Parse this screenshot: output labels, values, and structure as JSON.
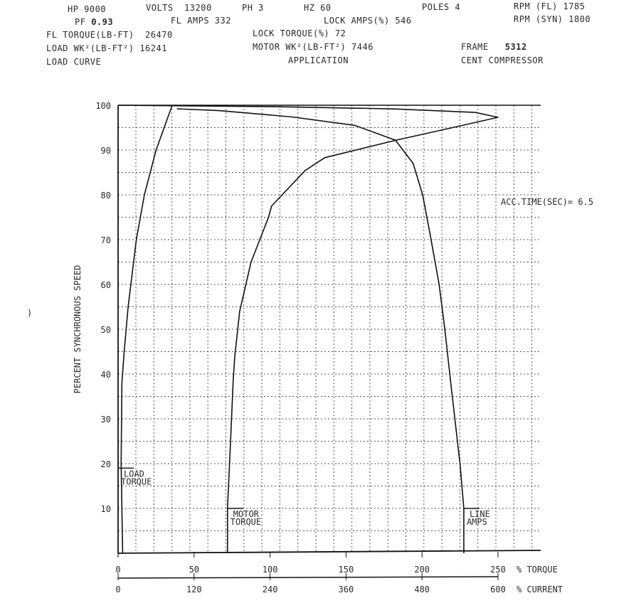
{
  "header": {
    "hp": "HP 9000",
    "volts": "VOLTS  13200",
    "phase": "PH 3",
    "hz": "HZ 60",
    "poles": "POLES 4",
    "rpm_fl": "RPM (FL) 1785",
    "pf_label": "PF",
    "pf_value": "0.93",
    "fl_amps": "FL AMPS 332",
    "lock_amps": "LOCK AMPS(%) 546",
    "rpm_syn": "RPM (SYN) 1800",
    "fl_torque": "FL TORQUE(LB-FT)  26470",
    "lock_torque": "LOCK TORQUE(%) 72",
    "load_wk2": "LOAD WK²(LB-FT²) 16241",
    "motor_wk2": "MOTOR WK²(LB-FT²) 7446",
    "frame_label": "FRAME",
    "frame_value": "5312",
    "load_curve": "LOAD CURVE",
    "application_label": "APPLICATION",
    "application_value": "CENT COMPRESSOR"
  },
  "stray_mark": ")",
  "chart_data": {
    "type": "line",
    "title": "",
    "ylabel": "PERCENT SYNCHRONOUS SPEED",
    "xlabel_torque": "% TORQUE",
    "xlabel_current": "% CURRENT",
    "ylim": [
      0,
      100
    ],
    "xlim_torque": [
      0,
      250
    ],
    "xlim_current": [
      0,
      600
    ],
    "yticks": [
      10,
      20,
      30,
      40,
      50,
      60,
      70,
      80,
      90,
      100
    ],
    "xticks_torque": [
      0,
      50,
      100,
      150,
      200,
      250
    ],
    "xticks_current": [
      0,
      120,
      240,
      360,
      480,
      600
    ],
    "grid": true,
    "annotation": "ACC.TIME(SEC)= 6.5",
    "series": [
      {
        "name": "LOAD TORQUE",
        "x_axis": "torque",
        "points": [
          [
            3,
            0
          ],
          [
            2,
            20
          ],
          [
            2.5,
            38
          ],
          [
            4,
            45
          ],
          [
            6.6,
            55
          ],
          [
            12,
            70
          ],
          [
            17.3,
            80
          ],
          [
            25,
            90
          ],
          [
            35.6,
            100
          ]
        ],
        "label_speed": 19
      },
      {
        "name": "MOTOR TORQUE",
        "x_axis": "torque",
        "points": [
          [
            72,
            0
          ],
          [
            72,
            10
          ],
          [
            74,
            25
          ],
          [
            75.8,
            39
          ],
          [
            76.8,
            44
          ],
          [
            80,
            54
          ],
          [
            87.5,
            65
          ],
          [
            99,
            75
          ],
          [
            101,
            77.5
          ],
          [
            123,
            85.4
          ],
          [
            136,
            88.3
          ],
          [
            183,
            92.2
          ],
          [
            220,
            95
          ],
          [
            250,
            97.3
          ],
          [
            235,
            98.4
          ],
          [
            180,
            99.2
          ],
          [
            100,
            99.7
          ],
          [
            0,
            100
          ]
        ],
        "label_speed": 10
      },
      {
        "name": "LINE AMPS",
        "x_axis": "current",
        "points": [
          [
            546,
            0
          ],
          [
            546,
            10
          ],
          [
            540,
            20
          ],
          [
            527,
            36
          ],
          [
            516,
            50
          ],
          [
            507,
            60
          ],
          [
            493,
            71
          ],
          [
            481,
            80
          ],
          [
            466,
            87
          ],
          [
            438,
            92.2
          ],
          [
            374,
            95.5
          ],
          [
            274,
            97.4
          ],
          [
            160,
            98.8
          ],
          [
            93,
            99.2
          ]
        ],
        "label_speed": 10
      }
    ]
  }
}
